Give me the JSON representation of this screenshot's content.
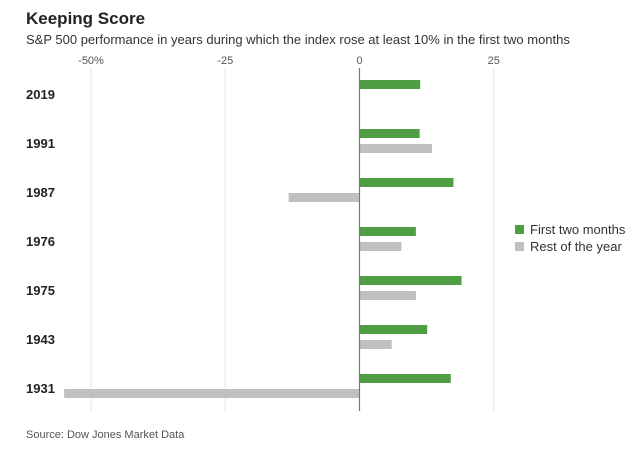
{
  "title": "Keeping Score",
  "subtitle": "S&P 500 performance in years during which the index rose at least 10% in the first two months",
  "source": "Source: Dow Jones Market Data",
  "chart_data": {
    "type": "bar",
    "orientation": "horizontal",
    "title": "Keeping Score",
    "subtitle": "S&P 500 performance in years during which the index rose at least 10% in the first two months",
    "categories": [
      "2019",
      "1991",
      "1987",
      "1976",
      "1975",
      "1943",
      "1931"
    ],
    "series": [
      {
        "name": "First two months",
        "color": "#4f9e44",
        "values": [
          11.3,
          11.2,
          17.5,
          10.5,
          19.0,
          12.6,
          17.0
        ]
      },
      {
        "name": "Rest of the year",
        "color": "#c0c0c0",
        "values": [
          null,
          13.5,
          -13.2,
          7.8,
          10.5,
          6.0,
          -55.0
        ]
      }
    ],
    "xlim": [
      -55,
      28
    ],
    "ticks": [
      -50,
      -25,
      0,
      25
    ],
    "tick_labels": [
      "-50%",
      "-25",
      "0",
      "25"
    ],
    "grid": true,
    "legend": "right"
  }
}
